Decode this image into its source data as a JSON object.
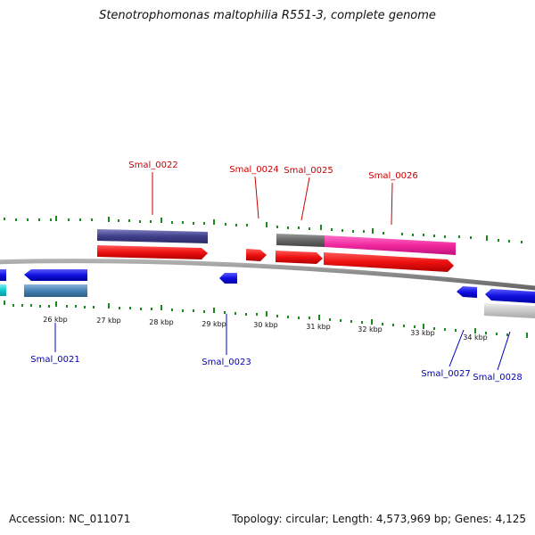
{
  "title": "Stenotrophomonas maltophilia R551-3, complete genome",
  "accession": "Accession: NC_011071",
  "stats": "Topology: circular; Length: 4,573,969 bp; Genes: 4,125",
  "colors": {
    "forward_label": "#cc0000",
    "reverse_label": "#0000bb",
    "tick": "#1a8a1a",
    "backbone": "#888888"
  },
  "ticks": [
    "26 kbp",
    "27 kbp",
    "28 kbp",
    "29 kbp",
    "30 kbp",
    "31 kbp",
    "32 kbp",
    "33 kbp",
    "34 kbp"
  ],
  "genes": {
    "forward": [
      "Smal_0022",
      "Smal_0024",
      "Smal_0025",
      "Smal_0026"
    ],
    "reverse": [
      "Smal_0021",
      "Smal_0023",
      "Smal_0027",
      "Smal_0028"
    ]
  }
}
